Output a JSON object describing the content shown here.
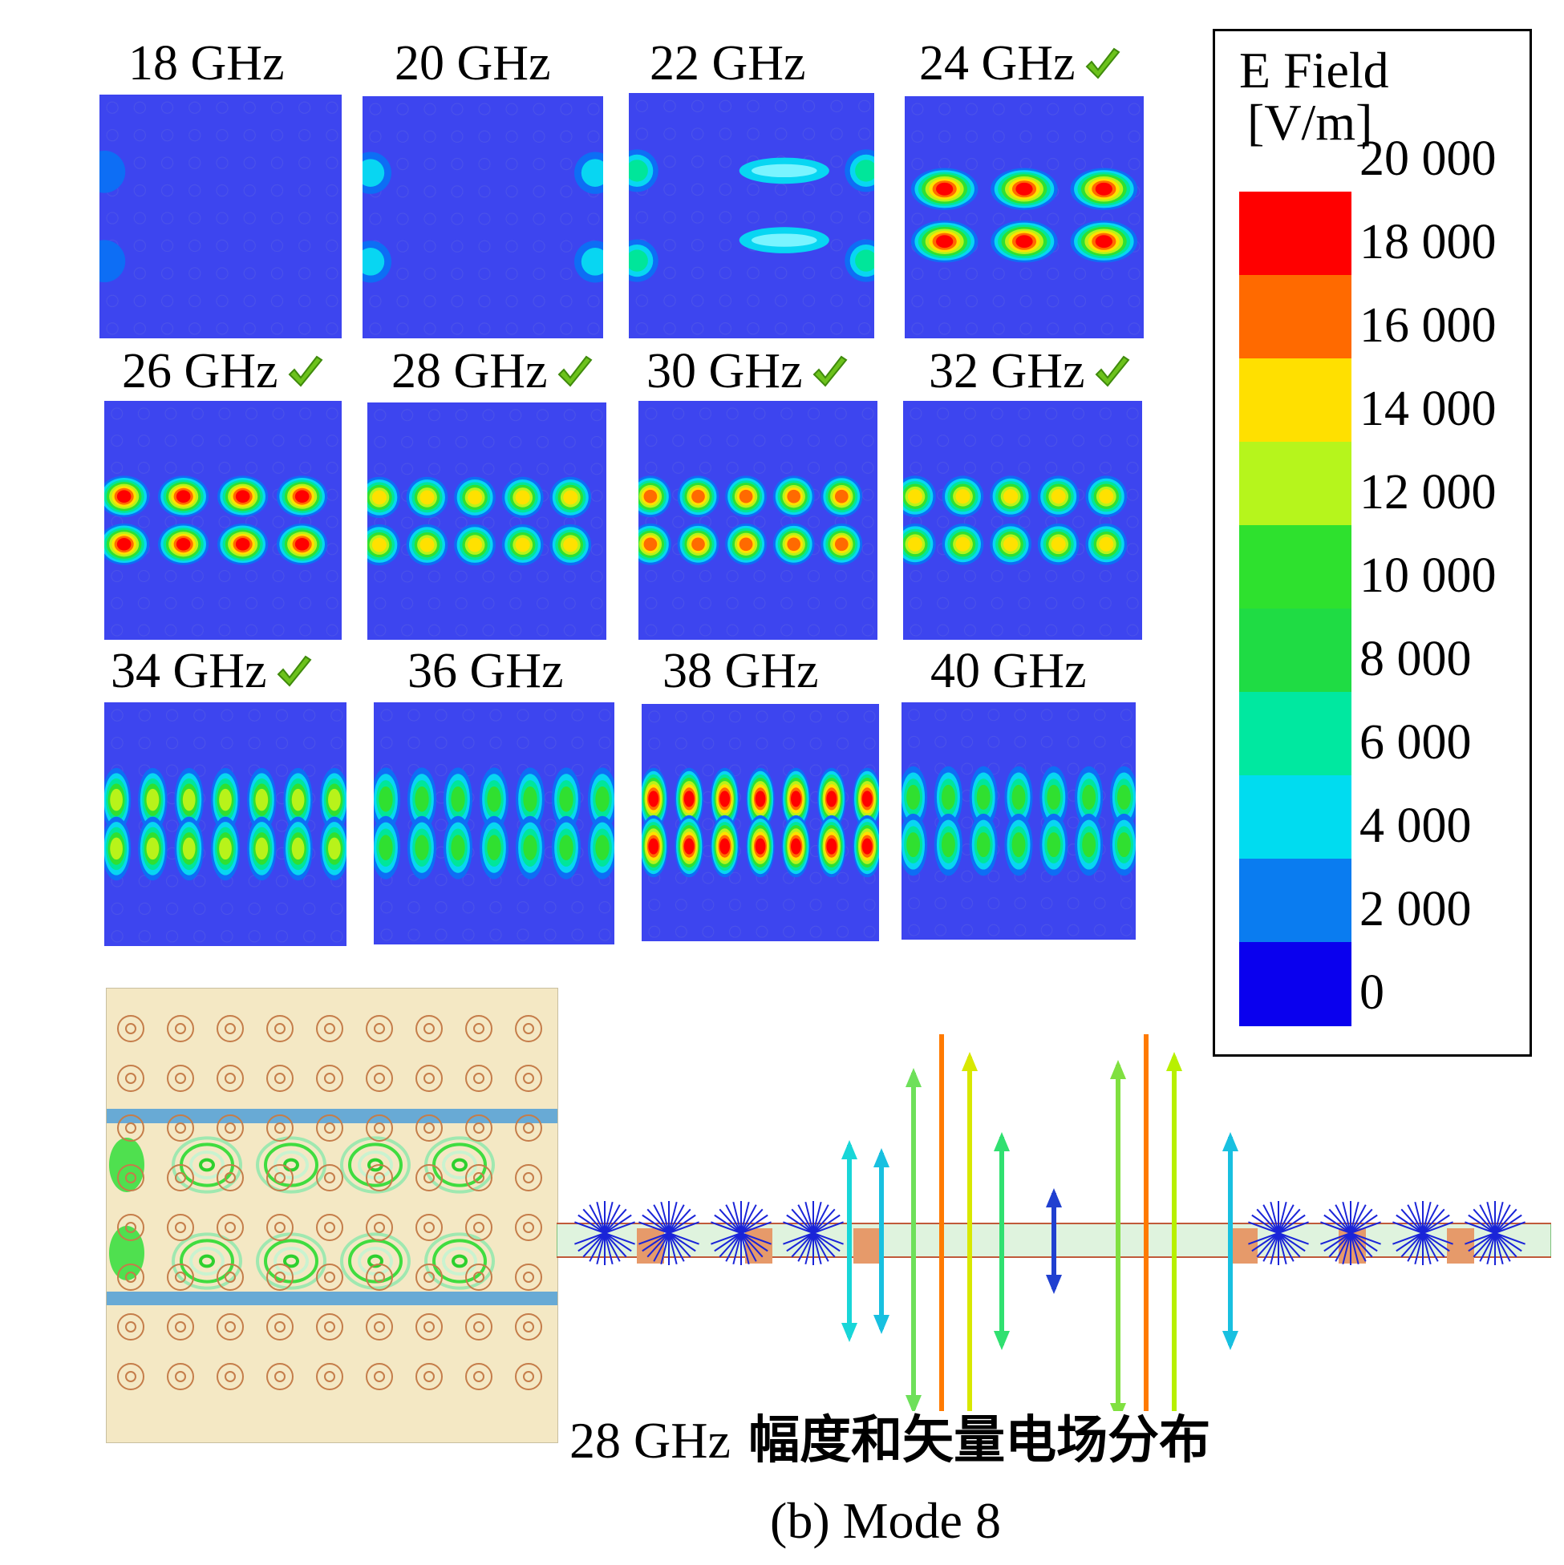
{
  "panels": [
    {
      "label": "18 GHz",
      "checked": false,
      "intensity": 0.05
    },
    {
      "label": "20 GHz",
      "checked": false,
      "intensity": 0.2
    },
    {
      "label": "22 GHz",
      "checked": false,
      "intensity": 0.35
    },
    {
      "label": "24 GHz",
      "checked": true,
      "intensity": 1.0
    },
    {
      "label": "26 GHz",
      "checked": true,
      "intensity": 0.95
    },
    {
      "label": "28 GHz",
      "checked": true,
      "intensity": 0.8
    },
    {
      "label": "30 GHz",
      "checked": true,
      "intensity": 0.85
    },
    {
      "label": "32 GHz",
      "checked": true,
      "intensity": 0.75
    },
    {
      "label": "34 GHz",
      "checked": true,
      "intensity": 0.6
    },
    {
      "label": "36 GHz",
      "checked": false,
      "intensity": 0.55
    },
    {
      "label": "38 GHz",
      "checked": false,
      "intensity": 0.95
    },
    {
      "label": "40 GHz",
      "checked": false,
      "intensity": 0.45
    }
  ],
  "legend": {
    "title_line1": "E Field",
    "title_line2": "[V/m]",
    "ticks": [
      "20 000",
      "18 000",
      "16 000",
      "14 000",
      "12 000",
      "10 000",
      "8 000",
      "6 000",
      "4 000",
      "2 000",
      "0"
    ],
    "colors": [
      "#ff0000",
      "#ff6a00",
      "#ffe000",
      "#b6f51c",
      "#2ee12e",
      "#1fdc44",
      "#00e8a0",
      "#00dcf0",
      "#0a7cf0",
      "#0a00ee"
    ]
  },
  "captions": {
    "vector_caption_prefix": "28 GHz",
    "vector_caption_text": "幅度和矢量电场分布",
    "figure_caption": "(b) Mode 8"
  },
  "colors": {
    "background_field": "#3d45ef",
    "pcb_background": "#f4e8c4",
    "check_green": "#6cc21c"
  }
}
